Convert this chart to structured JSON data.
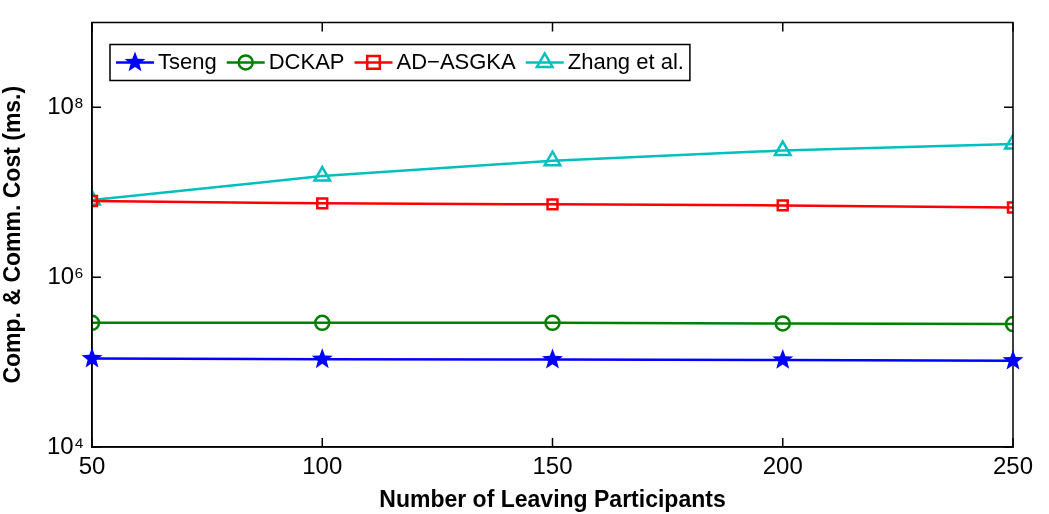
{
  "chart_data": {
    "type": "line",
    "xlabel": "Number of Leaving Participants",
    "ylabel": "Comp. & Comm. Cost (ms.)",
    "x": [
      50,
      100,
      150,
      200,
      250
    ],
    "xlim": [
      50,
      250
    ],
    "xticks": [
      50,
      100,
      150,
      200,
      250
    ],
    "ylim": [
      10000,
      1000000000
    ],
    "yticks": [
      {
        "value": 10000,
        "label": "10⁴"
      },
      {
        "value": 1000000,
        "label": "10⁶"
      },
      {
        "value": 100000000,
        "label": "10⁸"
      }
    ],
    "log": "y",
    "legend": "top left",
    "line_style": "solid",
    "series": [
      {
        "name": "Tseng",
        "color": "#0000ff",
        "marker": "star",
        "values": [
          110000,
          108000,
          107000,
          106000,
          104000
        ]
      },
      {
        "name": "DCKAP",
        "color": "#008000",
        "marker": "circle",
        "values": [
          290000,
          290000,
          290000,
          285000,
          280000
        ]
      },
      {
        "name": "AD−ASGKA",
        "color": "#ff0000",
        "marker": "square",
        "values": [
          7900000,
          7400000,
          7200000,
          7000000,
          6600000
        ]
      },
      {
        "name": "Zhang et al.",
        "color": "#00bfbf",
        "marker": "triangle",
        "values": [
          8100000,
          15500000,
          23500000,
          31000000,
          37000000
        ]
      }
    ]
  }
}
